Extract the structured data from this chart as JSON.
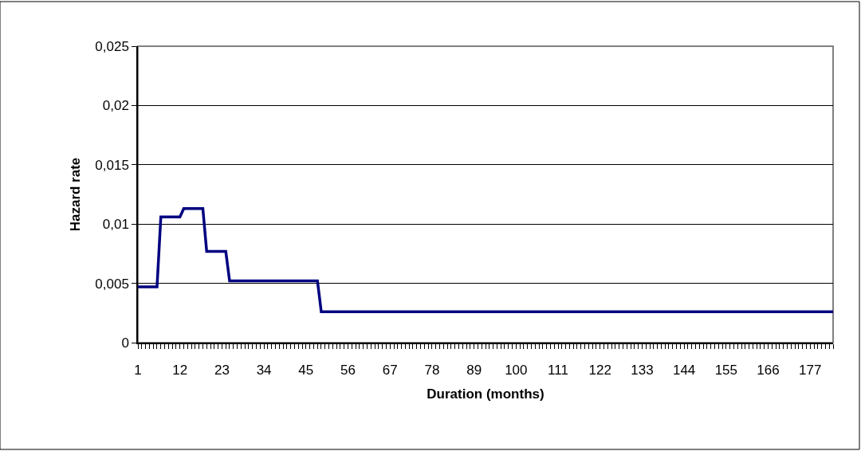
{
  "chart_data": {
    "type": "line",
    "xlabel": "Duration (months)",
    "ylabel": "Hazard rate",
    "categories": [
      "1",
      null,
      null,
      null,
      null,
      null,
      null,
      null,
      null,
      null,
      null,
      "12",
      null,
      null,
      null,
      null,
      null,
      null,
      null,
      null,
      null,
      null,
      "23",
      null,
      null,
      null,
      null,
      null,
      null,
      null,
      null,
      null,
      null,
      "34",
      null,
      null,
      null,
      null,
      null,
      null,
      null,
      null,
      null,
      null,
      "45",
      null,
      null,
      null,
      null,
      null,
      null,
      null,
      null,
      null,
      null,
      "56",
      null,
      null,
      null,
      null,
      null,
      null,
      null,
      null,
      null,
      null,
      "67",
      null,
      null,
      null,
      null,
      null,
      null,
      null,
      null,
      null,
      null,
      "78",
      null,
      null,
      null,
      null,
      null,
      null,
      null,
      null,
      null,
      null,
      "89",
      null,
      null,
      null,
      null,
      null,
      null,
      null,
      null,
      null,
      null,
      "100",
      null,
      null,
      null,
      null,
      null,
      null,
      null,
      null,
      null,
      null,
      "111",
      null,
      null,
      null,
      null,
      null,
      null,
      null,
      null,
      null,
      null,
      "122",
      null,
      null,
      null,
      null,
      null,
      null,
      null,
      null,
      null,
      null,
      "133",
      null,
      null,
      null,
      null,
      null,
      null,
      null,
      null,
      null,
      null,
      "144",
      null,
      null,
      null,
      null,
      null,
      null,
      null,
      null,
      null,
      null,
      "155",
      null,
      null,
      null,
      null,
      null,
      null,
      null,
      null,
      null,
      null,
      "166",
      null,
      null,
      null,
      null,
      null,
      null,
      null,
      null,
      null,
      null,
      "177",
      null,
      null,
      null,
      null,
      null,
      null
    ],
    "series": [
      {
        "color": "#000080",
        "values": [
          0.0047,
          0.0047,
          0.0047,
          0.0047,
          0.0047,
          0.0047,
          0.0106,
          0.0106,
          0.0106,
          0.0106,
          0.0106,
          0.0106,
          0.0113,
          0.0113,
          0.0113,
          0.0113,
          0.0113,
          0.0113,
          0.0077,
          0.0077,
          0.0077,
          0.0077,
          0.0077,
          0.0077,
          0.0052,
          0.0052,
          0.0052,
          0.0052,
          0.0052,
          0.0052,
          0.0052,
          0.0052,
          0.0052,
          0.0052,
          0.0052,
          0.0052,
          0.0052,
          0.0052,
          0.0052,
          0.0052,
          0.0052,
          0.0052,
          0.0052,
          0.0052,
          0.0052,
          0.0052,
          0.0052,
          0.0052,
          0.0026,
          0.0026,
          0.0026,
          0.0026,
          0.0026,
          0.0026,
          0.0026,
          0.0026,
          0.0026,
          0.0026,
          0.0026,
          0.0026,
          0.0026,
          0.0026,
          0.0026,
          0.0026,
          0.0026,
          0.0026,
          0.0026,
          0.0026,
          0.0026,
          0.0026,
          0.0026,
          0.0026,
          0.0026,
          0.0026,
          0.0026,
          0.0026,
          0.0026,
          0.0026,
          0.0026,
          0.0026,
          0.0026,
          0.0026,
          0.0026,
          0.0026,
          0.0026,
          0.0026,
          0.0026,
          0.0026,
          0.0026,
          0.0026,
          0.0026,
          0.0026,
          0.0026,
          0.0026,
          0.0026,
          0.0026,
          0.0026,
          0.0026,
          0.0026,
          0.0026,
          0.0026,
          0.0026,
          0.0026,
          0.0026,
          0.0026,
          0.0026,
          0.0026,
          0.0026,
          0.0026,
          0.0026,
          0.0026,
          0.0026,
          0.0026,
          0.0026,
          0.0026,
          0.0026,
          0.0026,
          0.0026,
          0.0026,
          0.0026,
          0.0026,
          0.0026,
          0.0026,
          0.0026,
          0.0026,
          0.0026,
          0.0026,
          0.0026,
          0.0026,
          0.0026,
          0.0026,
          0.0026,
          0.0026,
          0.0026,
          0.0026,
          0.0026,
          0.0026,
          0.0026,
          0.0026,
          0.0026,
          0.0026,
          0.0026,
          0.0026,
          0.0026,
          0.0026,
          0.0026,
          0.0026,
          0.0026,
          0.0026,
          0.0026,
          0.0026,
          0.0026,
          0.0026,
          0.0026,
          0.0026,
          0.0026,
          0.0026,
          0.0026,
          0.0026,
          0.0026,
          0.0026,
          0.0026,
          0.0026,
          0.0026,
          0.0026,
          0.0026,
          0.0026,
          0.0026,
          0.0026,
          0.0026,
          0.0026,
          0.0026,
          0.0026,
          0.0026,
          0.0026,
          0.0026,
          0.0026,
          0.0026,
          0.0026,
          0.0026,
          0.0026,
          0.0026,
          0.0026
        ]
      }
    ],
    "ylim": [
      0,
      0.025
    ],
    "yticks": [
      0,
      {
        "value": 0.005,
        "label": "0,005"
      },
      {
        "value": 0.01,
        "label": "0,01"
      },
      {
        "value": 0.015,
        "label": "0,015"
      },
      {
        "value": 0.02,
        "label": "0,02"
      },
      {
        "value": 0.025,
        "label": "0,025"
      }
    ],
    "grid": "y",
    "marker": "none",
    "line_style": "solid"
  }
}
